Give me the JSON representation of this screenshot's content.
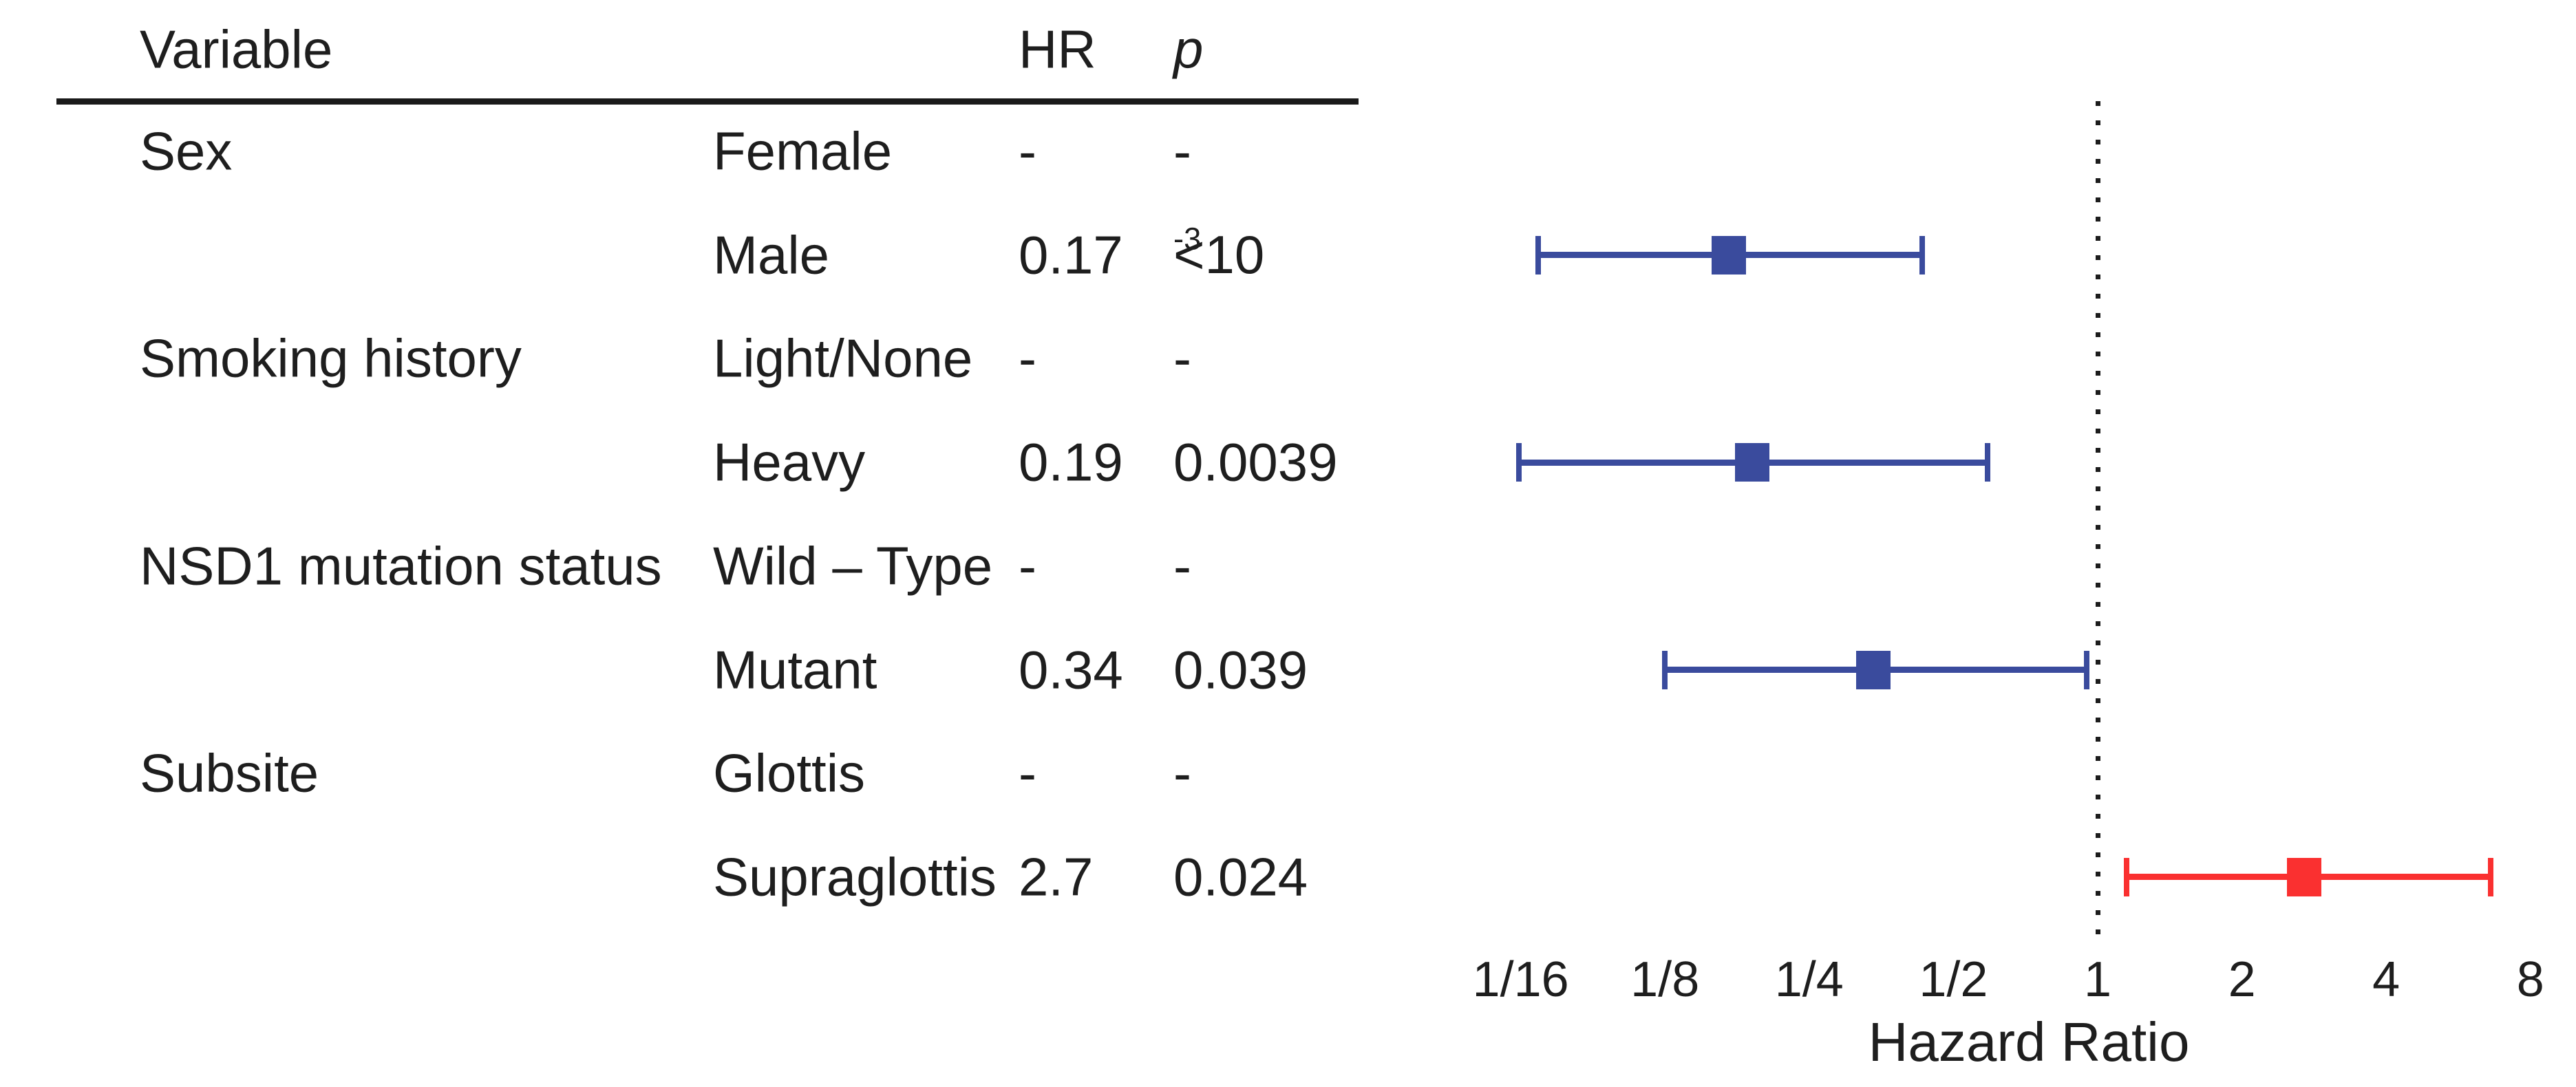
{
  "table": {
    "header": {
      "variable": "Variable",
      "hr": "HR",
      "p": "p"
    },
    "rows": [
      {
        "variable": "Sex",
        "level": "Female",
        "hr": "-",
        "p": "-"
      },
      {
        "variable": "",
        "level": "Male",
        "hr": "0.17",
        "p": "<10",
        "p_sup": "-3"
      },
      {
        "variable": "Smoking history",
        "level": "Light/None",
        "hr": "-",
        "p": "-"
      },
      {
        "variable": "",
        "level": "Heavy",
        "hr": "0.19",
        "p": "0.0039"
      },
      {
        "variable": "NSD1 mutation status",
        "level": "Wild – Type",
        "hr": "-",
        "p": "-"
      },
      {
        "variable": "",
        "level": "Mutant",
        "hr": "0.34",
        "p": "0.039"
      },
      {
        "variable": "Subsite",
        "level": "Glottis",
        "hr": "-",
        "p": "-"
      },
      {
        "variable": "",
        "level": "Supraglottis",
        "hr": "2.7",
        "p": "0.024"
      }
    ]
  },
  "chart_data": {
    "type": "scatter",
    "subtype": "forest-plot",
    "xlabel": "Hazard Ratio",
    "x_scale": "log2",
    "x_ticks": [
      "1/16",
      "1/8",
      "1/4",
      "1/2",
      "1",
      "2",
      "4",
      "8"
    ],
    "x_tick_values": [
      0.0625,
      0.125,
      0.25,
      0.5,
      1,
      2,
      4,
      8
    ],
    "xlim": [
      0.0625,
      8
    ],
    "reference_line": 1,
    "grid": false,
    "colors": {
      "protective": "#3A4B9D",
      "risk": "#FA3030",
      "reference": "#1c1c1c"
    },
    "points": [
      {
        "label": "Male",
        "row": 1,
        "hr": 0.17,
        "ci_low": 0.068,
        "ci_high": 0.43,
        "p": "<10^-3",
        "color": "#3A4B9D"
      },
      {
        "label": "Heavy",
        "row": 3,
        "hr": 0.19,
        "ci_low": 0.062,
        "ci_high": 0.59,
        "p": "0.0039",
        "color": "#3A4B9D"
      },
      {
        "label": "Mutant",
        "row": 5,
        "hr": 0.34,
        "ci_low": 0.125,
        "ci_high": 0.95,
        "p": "0.039",
        "color": "#3A4B9D"
      },
      {
        "label": "Supraglottis",
        "row": 7,
        "hr": 2.7,
        "ci_low": 1.15,
        "ci_high": 6.6,
        "p": "0.024",
        "color": "#FA3030"
      }
    ]
  }
}
